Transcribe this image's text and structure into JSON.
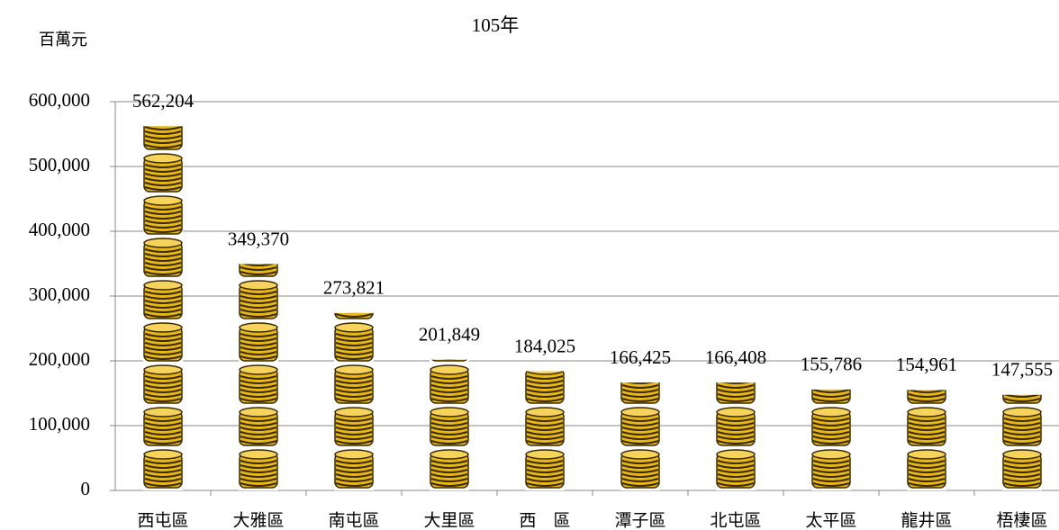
{
  "chart_data": {
    "type": "bar",
    "title": "105年",
    "y_label": "百萬元",
    "categories": [
      "西屯區",
      "大雅區",
      "南屯區",
      "大里區",
      "西　區",
      "潭子區",
      "北屯區",
      "太平區",
      "龍井區",
      "梧棲區"
    ],
    "values": [
      562204,
      349370,
      273821,
      201849,
      184025,
      166425,
      166408,
      155786,
      154961,
      147555
    ],
    "value_labels": [
      "562,204",
      "349,370",
      "273,821",
      "201,849",
      "184,025",
      "166,425",
      "166,408",
      "155,786",
      "154,961",
      "147,555"
    ],
    "color": "#e8b818",
    "ylim": [
      0,
      600000
    ],
    "yticks": [
      0,
      {
        "value": 100000,
        "label": "100,000"
      },
      {
        "value": 200000,
        "label": "200,000"
      },
      {
        "value": 300000,
        "label": "300,000"
      },
      {
        "value": 400000,
        "label": "400,000"
      },
      {
        "value": 500000,
        "label": "500,000"
      },
      {
        "value": 600000,
        "label": "600,000"
      }
    ],
    "grid": true
  }
}
